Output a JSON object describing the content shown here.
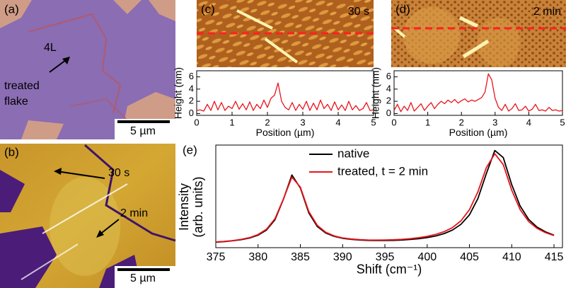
{
  "panels": {
    "a": {
      "label": "(a)",
      "layer": "4L",
      "flake": [
        "treated",
        "flake"
      ],
      "scale": "5 µm"
    },
    "b": {
      "label": "(b)",
      "times": [
        "30 s",
        "2 min"
      ],
      "scale": "5 µm"
    }
  },
  "chart_data": [
    {
      "type": "line",
      "panel_label": "(c)",
      "image_label": "30 s",
      "xlabel": "Position (µm)",
      "ylabel": "Height (nm)",
      "color": "#e8141c",
      "xlim": [
        0,
        5
      ],
      "xticks": [
        0,
        1,
        2,
        3,
        4,
        5
      ],
      "ylim": [
        -0.3,
        7
      ],
      "yticks": [
        0,
        2,
        4,
        6
      ],
      "x": [
        0,
        0.1,
        0.2,
        0.3,
        0.4,
        0.5,
        0.6,
        0.7,
        0.8,
        0.9,
        1,
        1.1,
        1.2,
        1.3,
        1.4,
        1.5,
        1.6,
        1.7,
        1.8,
        1.9,
        2,
        2.1,
        2.2,
        2.3,
        2.4,
        2.5,
        2.6,
        2.7,
        2.8,
        2.9,
        3,
        3.1,
        3.2,
        3.3,
        3.4,
        3.5,
        3.6,
        3.7,
        3.8,
        3.9,
        4,
        4.1,
        4.2,
        4.3,
        4.4,
        4.5,
        4.6,
        4.7,
        4.8,
        4.9,
        5
      ],
      "values": [
        0.5,
        0.6,
        0.4,
        1.5,
        0.5,
        2.0,
        0.6,
        1.8,
        0.5,
        1.2,
        0.8,
        2.0,
        0.7,
        1.6,
        0.6,
        1.9,
        0.5,
        1.5,
        0.8,
        2.2,
        1.0,
        2.5,
        3.0,
        5.0,
        2.0,
        1.0,
        0.6,
        1.8,
        0.5,
        1.5,
        0.7,
        2.0,
        0.5,
        1.7,
        0.6,
        2.2,
        0.8,
        1.5,
        0.5,
        1.9,
        0.6,
        1.4,
        0.5,
        2.0,
        0.6,
        1.3,
        0.5,
        0.8,
        1.8,
        0.5,
        0.6
      ]
    },
    {
      "type": "line",
      "panel_label": "(d)",
      "image_label": "2 min",
      "xlabel": "Position (µm)",
      "ylabel": "Height (nm)",
      "color": "#e8141c",
      "xlim": [
        0,
        5
      ],
      "xticks": [
        0,
        1,
        2,
        3,
        4,
        5
      ],
      "ylim": [
        -0.3,
        7
      ],
      "yticks": [
        0,
        2,
        4,
        6
      ],
      "x": [
        0,
        0.1,
        0.2,
        0.3,
        0.4,
        0.5,
        0.6,
        0.7,
        0.8,
        0.9,
        1,
        1.1,
        1.2,
        1.3,
        1.4,
        1.5,
        1.6,
        1.7,
        1.8,
        1.9,
        2,
        2.1,
        2.2,
        2.3,
        2.4,
        2.5,
        2.6,
        2.7,
        2.8,
        2.9,
        3,
        3.1,
        3.2,
        3.3,
        3.4,
        3.5,
        3.6,
        3.7,
        3.8,
        3.9,
        4,
        4.1,
        4.2,
        4.3,
        4.4,
        4.5,
        4.6,
        4.7,
        4.8,
        4.9,
        5
      ],
      "values": [
        0.5,
        1.5,
        0.3,
        1.2,
        0.5,
        1.8,
        0.4,
        1.0,
        1.6,
        0.5,
        1.2,
        1.8,
        0.8,
        1.5,
        2.0,
        1.6,
        2.2,
        1.8,
        2.3,
        1.7,
        2.1,
        2.4,
        1.9,
        2.2,
        2.0,
        2.3,
        2.6,
        3.5,
        6.5,
        5.5,
        2.5,
        1.0,
        0.5,
        1.5,
        0.4,
        0.8,
        1.6,
        0.5,
        0.6,
        1.2,
        0.4,
        0.7,
        1.5,
        0.5,
        0.6,
        0.4,
        1.0,
        0.5,
        0.6,
        0.4,
        0.5
      ]
    },
    {
      "type": "line",
      "panel_label": "(e)",
      "xlabel": "Shift (cm⁻¹)",
      "ylabel": [
        "Intensity",
        "(arb. units)"
      ],
      "xlim": [
        375,
        416
      ],
      "xticks": [
        375,
        380,
        385,
        390,
        395,
        400,
        405,
        410,
        415
      ],
      "ylim": [
        0,
        1
      ],
      "x": [
        375,
        376,
        377,
        378,
        379,
        380,
        381,
        382,
        383,
        384,
        385,
        386,
        387,
        388,
        389,
        390,
        391,
        392,
        393,
        394,
        395,
        396,
        397,
        398,
        399,
        400,
        401,
        402,
        403,
        404,
        405,
        406,
        407,
        408,
        409,
        410,
        411,
        412,
        413,
        414,
        415
      ],
      "series": [
        {
          "name": "native",
          "color": "#000000",
          "values": [
            0.054,
            0.059,
            0.067,
            0.078,
            0.094,
            0.122,
            0.172,
            0.272,
            0.472,
            0.708,
            0.582,
            0.339,
            0.207,
            0.143,
            0.11,
            0.091,
            0.081,
            0.074,
            0.071,
            0.07,
            0.07,
            0.071,
            0.074,
            0.08,
            0.087,
            0.098,
            0.114,
            0.137,
            0.172,
            0.228,
            0.32,
            0.479,
            0.723,
            0.947,
            0.878,
            0.614,
            0.405,
            0.276,
            0.2,
            0.154,
            0.122
          ]
        },
        {
          "name": "treated, t = 2 min",
          "color": "#e8141c",
          "values": [
            0.056,
            0.061,
            0.069,
            0.081,
            0.098,
            0.128,
            0.18,
            0.282,
            0.475,
            0.688,
            0.59,
            0.352,
            0.218,
            0.15,
            0.115,
            0.095,
            0.085,
            0.078,
            0.075,
            0.074,
            0.075,
            0.077,
            0.081,
            0.088,
            0.097,
            0.11,
            0.129,
            0.156,
            0.196,
            0.262,
            0.37,
            0.545,
            0.78,
            0.915,
            0.81,
            0.56,
            0.37,
            0.255,
            0.188,
            0.146,
            0.118
          ]
        }
      ]
    }
  ]
}
